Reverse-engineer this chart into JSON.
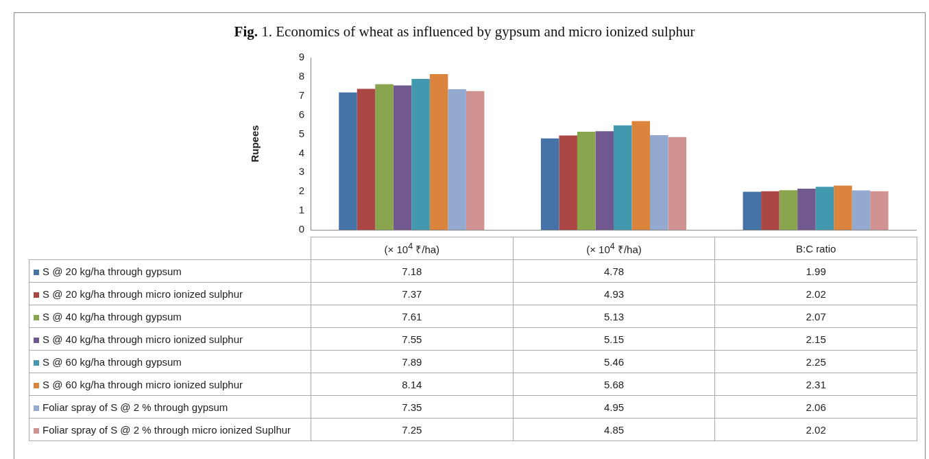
{
  "chart_data": {
    "type": "bar",
    "title": "Fig. 1. Economics of wheat as influenced by gypsum and micro ionized sulphur",
    "ylabel": "Rupees",
    "categories": [
      "(× 10$^{4}$ ₹/ha)",
      "(× 10$^{4}$ ₹/ha)",
      "B:C ratio"
    ],
    "series": [
      {
        "name": "S @ 20 kg/ha through gypsum",
        "color": "#4572a7",
        "values": [
          7.18,
          4.78,
          1.99
        ]
      },
      {
        "name": "S @ 20 kg/ha through micro ionized sulphur",
        "color": "#aa4643",
        "values": [
          7.37,
          4.93,
          2.02
        ]
      },
      {
        "name": "S @ 40 kg/ha through gypsum",
        "color": "#89a54e",
        "values": [
          7.61,
          5.13,
          2.07
        ]
      },
      {
        "name": "S @ 40 kg/ha through micro ionized sulphur",
        "color": "#71588f",
        "values": [
          7.55,
          5.15,
          2.15
        ]
      },
      {
        "name": "S @ 60 kg/ha through gypsum",
        "color": "#4198af",
        "values": [
          7.89,
          5.46,
          2.25
        ]
      },
      {
        "name": "S @ 60 kg/ha through micro ionized sulphur",
        "color": "#db843d",
        "values": [
          8.14,
          5.68,
          2.31
        ]
      },
      {
        "name": "Foliar spray of S @ 2 % through gypsum",
        "color": "#93a9cf",
        "values": [
          7.35,
          4.95,
          2.06
        ]
      },
      {
        "name": "Foliar spray of S @ 2 % through micro ionized Suplhur",
        "color": "#d19392",
        "values": [
          7.25,
          4.85,
          2.02
        ]
      }
    ],
    "ylim": [
      0,
      9
    ],
    "yticks": [
      0,
      1,
      2,
      3,
      4,
      5,
      6,
      7,
      8,
      9
    ],
    "grid": false,
    "legend": "bottom",
    "data_labels": true
  }
}
